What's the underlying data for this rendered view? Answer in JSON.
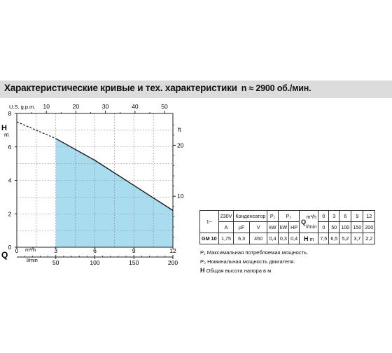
{
  "header": {
    "title": "Характеристические кривые и тех. характеристики",
    "speed": "n ≈ 2900 об./мин."
  },
  "chart_data": {
    "type": "area",
    "x_unit_top": "U.S. g.p.m.",
    "x_top_ticks": [
      10,
      20,
      30,
      40,
      50
    ],
    "x_unit_m3h": "m³/h",
    "x_m3h_ticks": [
      0,
      3,
      6,
      9,
      12
    ],
    "x_unit_lmin": "l/min",
    "x_lmin_ticks": [
      50,
      100,
      150,
      200
    ],
    "q_symbol": "Q",
    "y_label": "H",
    "y_unit": "m",
    "y_ticks": [
      0,
      2,
      4,
      6,
      8
    ],
    "y_right_unit": "ft",
    "y_right_ticks": [
      10,
      20
    ],
    "xlim": [
      0,
      12
    ],
    "ylim": [
      0,
      8
    ],
    "grid": true,
    "series": [
      {
        "x": [
          0,
          3,
          6,
          9,
          12
        ],
        "y": [
          7.5,
          6.5,
          5.2,
          3.7,
          2.2
        ],
        "dashed_until_x": 3,
        "shaded_from_x": 3
      }
    ],
    "colors": {
      "fill": "#aadcf0",
      "line": "#1a1a1a",
      "grid": "#888888"
    }
  },
  "spec_table": {
    "model_header": "1~",
    "voltage": "230V",
    "condenser": "Конденсатор",
    "p1": "P₁",
    "p2": "P₂",
    "unit_a": "A",
    "unit_uf": "µF",
    "unit_v": "V",
    "unit_kw1": "kW",
    "unit_kw2": "kW",
    "unit_hp": "HP",
    "q_symbol": "Q",
    "q_unit_m3h": "m³/h",
    "q_unit_lmin": "l/min",
    "q_m3h_values": [
      "0",
      "3",
      "6",
      "9",
      "12"
    ],
    "q_lmin_values": [
      "0",
      "50",
      "100",
      "150",
      "200"
    ],
    "model": "GM 10",
    "current": "1,75",
    "capacitance": "6,3",
    "cap_voltage": "450",
    "p1_kw": "0,4",
    "p2_kw": "0,3",
    "p2_hp": "0,4",
    "h_symbol": "H",
    "h_unit": "m",
    "h_values": [
      "7,5",
      "6,5",
      "5,2",
      "3,7",
      "2,2"
    ]
  },
  "notes": [
    {
      "sym": "P₁",
      "text": "Максимальная потребляемая мощность."
    },
    {
      "sym": "P₂",
      "text": "Номинальная мощность двигателя."
    },
    {
      "sym": "H",
      "text": "Общая высота напора в м"
    }
  ]
}
